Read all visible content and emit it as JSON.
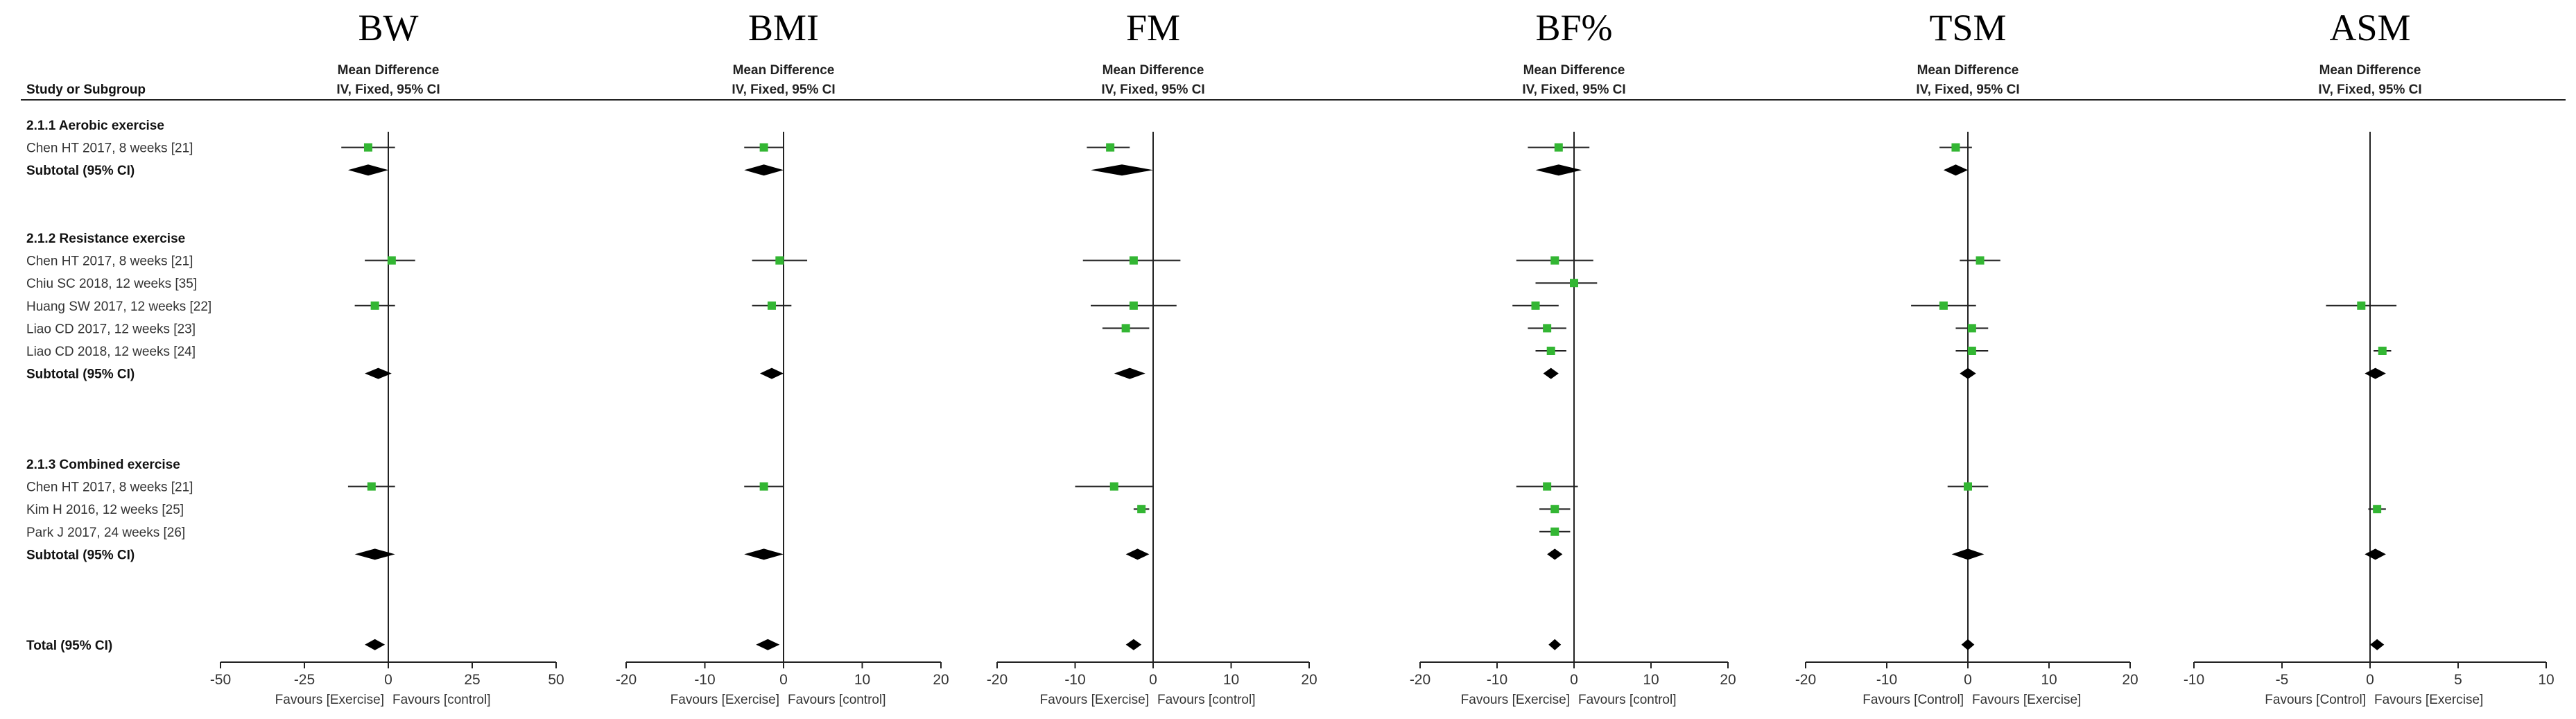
{
  "header": {
    "study_label": "Study or Subgroup"
  },
  "colors": {
    "study_marker": "#33b633",
    "pooled_marker": "#000000",
    "ci_line": "#222222",
    "axis": "#222222"
  },
  "rows": [
    {
      "label": "2.1.1 Aerobic exercise",
      "kind": "group"
    },
    {
      "label": "Chen HT 2017, 8 weeks [21]",
      "kind": "study"
    },
    {
      "label": "Subtotal (95% CI)",
      "kind": "subtotal"
    },
    {
      "label": "",
      "kind": "blank"
    },
    {
      "label": "",
      "kind": "blank"
    },
    {
      "label": "2.1.2 Resistance exercise",
      "kind": "group"
    },
    {
      "label": "Chen HT 2017, 8 weeks [21]",
      "kind": "study"
    },
    {
      "label": "Chiu SC 2018, 12 weeks [35]",
      "kind": "study"
    },
    {
      "label": "Huang SW 2017, 12 weeks [22]",
      "kind": "study"
    },
    {
      "label": "Liao CD 2017, 12 weeks [23]",
      "kind": "study"
    },
    {
      "label": "Liao CD 2018, 12 weeks [24]",
      "kind": "study"
    },
    {
      "label": "Subtotal (95% CI)",
      "kind": "subtotal"
    },
    {
      "label": "",
      "kind": "blank"
    },
    {
      "label": "",
      "kind": "blank"
    },
    {
      "label": "",
      "kind": "blank"
    },
    {
      "label": "2.1.3 Combined exercise",
      "kind": "group"
    },
    {
      "label": "Chen HT 2017, 8 weeks [21]",
      "kind": "study"
    },
    {
      "label": "Kim H 2016, 12 weeks [25]",
      "kind": "study"
    },
    {
      "label": "Park J 2017, 24 weeks [26]",
      "kind": "study"
    },
    {
      "label": "Subtotal (95% CI)",
      "kind": "subtotal"
    },
    {
      "label": "",
      "kind": "blank"
    },
    {
      "label": "",
      "kind": "blank"
    },
    {
      "label": "",
      "kind": "blank"
    },
    {
      "label": "Total (95% CI)",
      "kind": "total"
    }
  ],
  "chart_data": [
    {
      "type": "forest",
      "title": "BW",
      "column_header": [
        "Mean Difference",
        "IV, Fixed, 95% CI"
      ],
      "xlim": [
        -50,
        50
      ],
      "ticks": [
        "-50",
        "-25",
        "0",
        "25",
        "50"
      ],
      "favours_left": "Favours [Exercise]",
      "favours_right": "Favours [control]",
      "points": [
        {
          "row": 1,
          "est": -6,
          "lo": -14,
          "hi": 2
        },
        {
          "row": 2,
          "est": -6,
          "lo": -12,
          "hi": 0,
          "pooled": true
        },
        {
          "row": 6,
          "est": 1,
          "lo": -7,
          "hi": 8
        },
        {
          "row": 8,
          "est": -4,
          "lo": -10,
          "hi": 2
        },
        {
          "row": 11,
          "est": -3,
          "lo": -7,
          "hi": 1,
          "pooled": true
        },
        {
          "row": 16,
          "est": -5,
          "lo": -12,
          "hi": 2
        },
        {
          "row": 19,
          "est": -4,
          "lo": -10,
          "hi": 2,
          "pooled": true
        },
        {
          "row": 23,
          "est": -4,
          "lo": -7,
          "hi": -1,
          "pooled": true
        }
      ]
    },
    {
      "type": "forest",
      "title": "BMI",
      "column_header": [
        "Mean Difference",
        "IV, Fixed, 95% CI"
      ],
      "xlim": [
        -20,
        20
      ],
      "ticks": [
        "-20",
        "-10",
        "0",
        "10",
        "20"
      ],
      "favours_left": "Favours [Exercise]",
      "favours_right": "Favours [control]",
      "points": [
        {
          "row": 1,
          "est": -2.5,
          "lo": -5,
          "hi": 0
        },
        {
          "row": 2,
          "est": -2.5,
          "lo": -5,
          "hi": 0,
          "pooled": true
        },
        {
          "row": 6,
          "est": -0.5,
          "lo": -4,
          "hi": 3
        },
        {
          "row": 8,
          "est": -1.5,
          "lo": -4,
          "hi": 1
        },
        {
          "row": 11,
          "est": -1.5,
          "lo": -3,
          "hi": 0,
          "pooled": true
        },
        {
          "row": 16,
          "est": -2.5,
          "lo": -5,
          "hi": 0
        },
        {
          "row": 19,
          "est": -2.5,
          "lo": -5,
          "hi": 0,
          "pooled": true
        },
        {
          "row": 23,
          "est": -2,
          "lo": -3.5,
          "hi": -0.5,
          "pooled": true
        }
      ]
    },
    {
      "type": "forest",
      "title": "FM",
      "column_header": [
        "Mean Difference",
        "IV, Fixed, 95% CI"
      ],
      "xlim": [
        -20,
        20
      ],
      "ticks": [
        "-20",
        "-10",
        "0",
        "10",
        "20"
      ],
      "favours_left": "Favours [Exercise]",
      "favours_right": "Favours [control]",
      "points": [
        {
          "row": 1,
          "est": -5.5,
          "lo": -8.5,
          "hi": -3
        },
        {
          "row": 2,
          "est": -4,
          "lo": -8,
          "hi": 0,
          "pooled": true
        },
        {
          "row": 6,
          "est": -2.5,
          "lo": -9,
          "hi": 3.5
        },
        {
          "row": 8,
          "est": -2.5,
          "lo": -8,
          "hi": 3
        },
        {
          "row": 9,
          "est": -3.5,
          "lo": -6.5,
          "hi": -0.5
        },
        {
          "row": 11,
          "est": -3,
          "lo": -5,
          "hi": -1,
          "pooled": true
        },
        {
          "row": 16,
          "est": -5,
          "lo": -10,
          "hi": 0
        },
        {
          "row": 17,
          "est": -1.5,
          "lo": -2.5,
          "hi": -0.5
        },
        {
          "row": 19,
          "est": -2,
          "lo": -3.5,
          "hi": -0.5,
          "pooled": true
        },
        {
          "row": 23,
          "est": -2.5,
          "lo": -3.5,
          "hi": -1.5,
          "pooled": true
        }
      ]
    },
    {
      "type": "forest",
      "title": "BF%",
      "column_header": [
        "Mean Difference",
        "IV, Fixed, 95% CI"
      ],
      "xlim": [
        -20,
        20
      ],
      "ticks": [
        "-20",
        "-10",
        "0",
        "10",
        "20"
      ],
      "favours_left": "Favours [Exercise]",
      "favours_right": "Favours [control]",
      "points": [
        {
          "row": 1,
          "est": -2,
          "lo": -6,
          "hi": 2
        },
        {
          "row": 2,
          "est": -2,
          "lo": -5,
          "hi": 1,
          "pooled": true
        },
        {
          "row": 6,
          "est": -2.5,
          "lo": -7.5,
          "hi": 2.5
        },
        {
          "row": 7,
          "est": 0,
          "lo": -5,
          "hi": 3
        },
        {
          "row": 8,
          "est": -5,
          "lo": -8,
          "hi": -2
        },
        {
          "row": 9,
          "est": -3.5,
          "lo": -6,
          "hi": -1
        },
        {
          "row": 10,
          "est": -3,
          "lo": -5,
          "hi": -1
        },
        {
          "row": 11,
          "est": -3,
          "lo": -4,
          "hi": -2,
          "pooled": true
        },
        {
          "row": 16,
          "est": -3.5,
          "lo": -7.5,
          "hi": 0.5
        },
        {
          "row": 17,
          "est": -2.5,
          "lo": -4.5,
          "hi": -0.5
        },
        {
          "row": 18,
          "est": -2.5,
          "lo": -4.5,
          "hi": -0.5
        },
        {
          "row": 19,
          "est": -2.5,
          "lo": -3.5,
          "hi": -1.5,
          "pooled": true
        },
        {
          "row": 23,
          "est": -2.5,
          "lo": -3.2,
          "hi": -1.8,
          "pooled": true
        }
      ]
    },
    {
      "type": "forest",
      "title": "TSM",
      "column_header": [
        "Mean Difference",
        "IV, Fixed, 95% CI"
      ],
      "xlim": [
        -20,
        20
      ],
      "ticks": [
        "-20",
        "-10",
        "0",
        "10",
        "20"
      ],
      "favours_left": "Favours [Control]",
      "favours_right": "Favours [Exercise]",
      "points": [
        {
          "row": 1,
          "est": -1.5,
          "lo": -3.5,
          "hi": 0.5
        },
        {
          "row": 2,
          "est": -1.5,
          "lo": -3,
          "hi": 0,
          "pooled": true
        },
        {
          "row": 6,
          "est": 1.5,
          "lo": -1,
          "hi": 4
        },
        {
          "row": 8,
          "est": -3,
          "lo": -7,
          "hi": 1
        },
        {
          "row": 9,
          "est": 0.5,
          "lo": -1.5,
          "hi": 2.5
        },
        {
          "row": 10,
          "est": 0.5,
          "lo": -1.5,
          "hi": 2.5
        },
        {
          "row": 11,
          "est": 0,
          "lo": -1,
          "hi": 1,
          "pooled": true
        },
        {
          "row": 16,
          "est": 0,
          "lo": -2.5,
          "hi": 2.5
        },
        {
          "row": 19,
          "est": 0,
          "lo": -2,
          "hi": 2,
          "pooled": true
        },
        {
          "row": 23,
          "est": 0,
          "lo": -0.8,
          "hi": 0.8,
          "pooled": true
        }
      ]
    },
    {
      "type": "forest",
      "title": "ASM",
      "column_header": [
        "Mean Difference",
        "IV, Fixed, 95% CI"
      ],
      "xlim": [
        -10,
        10
      ],
      "ticks": [
        "-10",
        "-5",
        "0",
        "5",
        "10"
      ],
      "favours_left": "Favours [Control]",
      "favours_right": "Favours [Exercise]",
      "points": [
        {
          "row": 8,
          "est": -0.5,
          "lo": -2.5,
          "hi": 1.5
        },
        {
          "row": 10,
          "est": 0.7,
          "lo": 0.2,
          "hi": 1.2
        },
        {
          "row": 11,
          "est": 0.3,
          "lo": -0.3,
          "hi": 0.9,
          "pooled": true
        },
        {
          "row": 17,
          "est": 0.4,
          "lo": -0.1,
          "hi": 0.9
        },
        {
          "row": 19,
          "est": 0.3,
          "lo": -0.3,
          "hi": 0.9,
          "pooled": true
        },
        {
          "row": 23,
          "est": 0.4,
          "lo": 0,
          "hi": 0.8,
          "pooled": true
        }
      ]
    }
  ]
}
